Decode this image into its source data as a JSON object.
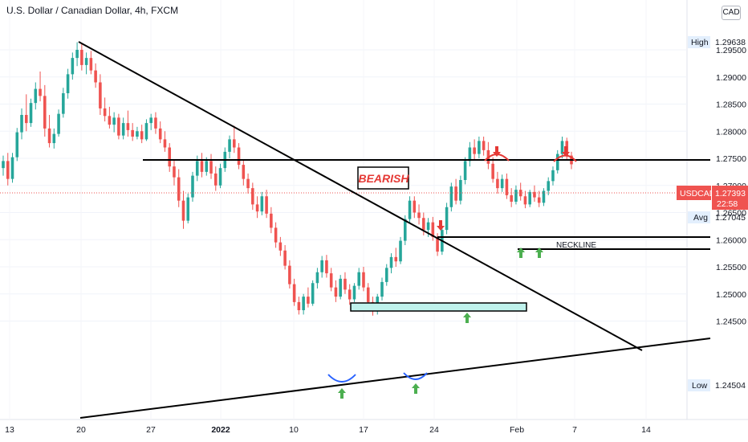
{
  "header": {
    "title": "U.S. Dollar / Canadian Dollar, 4h, FXCM",
    "currency_button": "CAD"
  },
  "chart_data": {
    "type": "candlestick",
    "symbol": "USDCAD",
    "interval": "4h",
    "source": "FXCM",
    "y_ticks": [
      "1.29500",
      "1.29000",
      "1.28500",
      "1.28000",
      "1.27500",
      "1.27000",
      "1.26500",
      "1.26000",
      "1.25500",
      "1.25000",
      "1.24500"
    ],
    "y_tick_values": [
      1.295,
      1.29,
      1.285,
      1.28,
      1.275,
      1.27,
      1.265,
      1.26,
      1.255,
      1.25,
      1.245
    ],
    "x_ticks": [
      "13",
      "20",
      "27",
      "2022",
      "10",
      "17",
      "24",
      "Feb",
      "7",
      "14"
    ],
    "ylim": [
      1.2405,
      1.2995
    ],
    "markers": {
      "high": {
        "label": "High",
        "value": "1.29638",
        "price": 1.29638
      },
      "price": {
        "label": "USDCAD",
        "value": "1.27393",
        "countdown": "22:58",
        "price": 1.27393
      },
      "avg": {
        "label": "Avg",
        "value": "1.27045",
        "price": 1.27045
      },
      "low": {
        "label": "Low",
        "value": "1.24504",
        "price": 1.24504
      }
    },
    "annotations": {
      "bearish": "BEARISH",
      "neckline": "NECKLINE"
    },
    "colors": {
      "up": "#26a69a",
      "down": "#ef5350",
      "price_tag": "#ef5350",
      "marker_bg": "#e3effd",
      "zone_fill": "#bff2ec",
      "up_arrow": "#4caf50",
      "down_arrow": "#e53935",
      "smile": "#2962ff"
    },
    "candles": [
      [
        1.2732,
        1.2755,
        1.2718,
        1.2745
      ],
      [
        1.2745,
        1.276,
        1.27,
        1.2712
      ],
      [
        1.2712,
        1.276,
        1.2705,
        1.2752
      ],
      [
        1.2752,
        1.2806,
        1.2745,
        1.2798
      ],
      [
        1.2798,
        1.2842,
        1.2785,
        1.283
      ],
      [
        1.283,
        1.2868,
        1.28,
        1.2815
      ],
      [
        1.2815,
        1.286,
        1.2808,
        1.2852
      ],
      [
        1.2852,
        1.289,
        1.284,
        1.2878
      ],
      [
        1.2878,
        1.291,
        1.2855,
        1.2865
      ],
      [
        1.2865,
        1.2885,
        1.279,
        1.2805
      ],
      [
        1.2805,
        1.283,
        1.277,
        1.2778
      ],
      [
        1.2778,
        1.2805,
        1.2768,
        1.2795
      ],
      [
        1.2795,
        1.284,
        1.279,
        1.2832
      ],
      [
        1.2832,
        1.288,
        1.2825,
        1.287
      ],
      [
        1.287,
        1.2915,
        1.286,
        1.2905
      ],
      [
        1.2905,
        1.2945,
        1.2895,
        1.2935
      ],
      [
        1.2935,
        1.2964,
        1.292,
        1.295
      ],
      [
        1.295,
        1.2962,
        1.2912,
        1.2922
      ],
      [
        1.2922,
        1.2945,
        1.2905,
        1.2935
      ],
      [
        1.2935,
        1.2948,
        1.2905,
        1.2912
      ],
      [
        1.2912,
        1.2925,
        1.288,
        1.289
      ],
      [
        1.289,
        1.2905,
        1.283,
        1.2842
      ],
      [
        1.2842,
        1.2862,
        1.2818,
        1.2828
      ],
      [
        1.2828,
        1.2845,
        1.2805,
        1.2812
      ],
      [
        1.2812,
        1.2835,
        1.2798,
        1.2825
      ],
      [
        1.2825,
        1.2832,
        1.2785,
        1.2792
      ],
      [
        1.2792,
        1.2825,
        1.2785,
        1.2815
      ],
      [
        1.2815,
        1.2838,
        1.279,
        1.2802
      ],
      [
        1.2802,
        1.2815,
        1.2782,
        1.279
      ],
      [
        1.279,
        1.2808,
        1.2785,
        1.28
      ],
      [
        1.28,
        1.2812,
        1.2778,
        1.2785
      ],
      [
        1.2785,
        1.2822,
        1.2782,
        1.2815
      ],
      [
        1.2815,
        1.2832,
        1.2802,
        1.2825
      ],
      [
        1.2825,
        1.2835,
        1.2795,
        1.2805
      ],
      [
        1.2805,
        1.2818,
        1.2778,
        1.2785
      ],
      [
        1.2785,
        1.28,
        1.2762,
        1.277
      ],
      [
        1.277,
        1.2778,
        1.2725,
        1.2735
      ],
      [
        1.2735,
        1.2748,
        1.27,
        1.2715
      ],
      [
        1.2715,
        1.273,
        1.266,
        1.2672
      ],
      [
        1.2672,
        1.269,
        1.262,
        1.2635
      ],
      [
        1.2635,
        1.2685,
        1.263,
        1.2678
      ],
      [
        1.2678,
        1.2725,
        1.267,
        1.2718
      ],
      [
        1.2718,
        1.2755,
        1.2708,
        1.2745
      ],
      [
        1.2745,
        1.276,
        1.2715,
        1.2725
      ],
      [
        1.2725,
        1.2752,
        1.2718,
        1.2745
      ],
      [
        1.2745,
        1.2758,
        1.2712,
        1.2722
      ],
      [
        1.2722,
        1.2735,
        1.269,
        1.27
      ],
      [
        1.27,
        1.274,
        1.2695,
        1.2732
      ],
      [
        1.2732,
        1.277,
        1.2725,
        1.2762
      ],
      [
        1.2762,
        1.2792,
        1.275,
        1.2785
      ],
      [
        1.2785,
        1.281,
        1.276,
        1.277
      ],
      [
        1.277,
        1.2778,
        1.273,
        1.2738
      ],
      [
        1.2738,
        1.2748,
        1.27,
        1.2712
      ],
      [
        1.2712,
        1.2722,
        1.2685,
        1.2695
      ],
      [
        1.2695,
        1.2705,
        1.2655,
        1.2665
      ],
      [
        1.2665,
        1.268,
        1.264,
        1.2652
      ],
      [
        1.2652,
        1.2688,
        1.2645,
        1.268
      ],
      [
        1.268,
        1.2692,
        1.264,
        1.2648
      ],
      [
        1.2648,
        1.266,
        1.2612,
        1.2622
      ],
      [
        1.2622,
        1.2632,
        1.2585,
        1.2595
      ],
      [
        1.2595,
        1.2605,
        1.257,
        1.258
      ],
      [
        1.258,
        1.259,
        1.2545,
        1.2552
      ],
      [
        1.2552,
        1.2562,
        1.251,
        1.2518
      ],
      [
        1.2518,
        1.2528,
        1.2478,
        1.2485
      ],
      [
        1.2485,
        1.2495,
        1.2462,
        1.247
      ],
      [
        1.247,
        1.25,
        1.2462,
        1.2495
      ],
      [
        1.2495,
        1.2512,
        1.2475,
        1.2482
      ],
      [
        1.2482,
        1.2525,
        1.2478,
        1.252
      ],
      [
        1.252,
        1.2548,
        1.251,
        1.254
      ],
      [
        1.254,
        1.257,
        1.253,
        1.2562
      ],
      [
        1.2562,
        1.2572,
        1.253,
        1.2538
      ],
      [
        1.2538,
        1.2548,
        1.2505,
        1.2512
      ],
      [
        1.2512,
        1.2525,
        1.2485,
        1.2495
      ],
      [
        1.2495,
        1.2535,
        1.249,
        1.2528
      ],
      [
        1.2528,
        1.254,
        1.25,
        1.2508
      ],
      [
        1.2508,
        1.2518,
        1.248,
        1.249
      ],
      [
        1.249,
        1.252,
        1.2485,
        1.2515
      ],
      [
        1.2515,
        1.2548,
        1.2508,
        1.254
      ],
      [
        1.254,
        1.255,
        1.2505,
        1.2512
      ],
      [
        1.2512,
        1.252,
        1.2478,
        1.2485
      ],
      [
        1.2485,
        1.2495,
        1.246,
        1.2468
      ],
      [
        1.2468,
        1.25,
        1.2462,
        1.2495
      ],
      [
        1.2495,
        1.253,
        1.2488,
        1.2522
      ],
      [
        1.2522,
        1.2555,
        1.2515,
        1.2548
      ],
      [
        1.2548,
        1.2575,
        1.2538,
        1.2568
      ],
      [
        1.2568,
        1.2585,
        1.255,
        1.256
      ],
      [
        1.256,
        1.2605,
        1.2555,
        1.2598
      ],
      [
        1.2598,
        1.2645,
        1.259,
        1.2638
      ],
      [
        1.2638,
        1.268,
        1.263,
        1.2672
      ],
      [
        1.2672,
        1.268,
        1.264,
        1.265
      ],
      [
        1.265,
        1.2665,
        1.2628,
        1.264
      ],
      [
        1.264,
        1.265,
        1.2608,
        1.2618
      ],
      [
        1.2618,
        1.264,
        1.2605,
        1.2632
      ],
      [
        1.2632,
        1.2642,
        1.2598,
        1.2605
      ],
      [
        1.2605,
        1.2612,
        1.257,
        1.2578
      ],
      [
        1.2578,
        1.2625,
        1.2572,
        1.2618
      ],
      [
        1.2618,
        1.2668,
        1.261,
        1.266
      ],
      [
        1.266,
        1.2705,
        1.2652,
        1.2698
      ],
      [
        1.2698,
        1.2712,
        1.2665,
        1.2672
      ],
      [
        1.2672,
        1.2718,
        1.2665,
        1.271
      ],
      [
        1.271,
        1.2752,
        1.2702,
        1.2745
      ],
      [
        1.2745,
        1.278,
        1.2735,
        1.277
      ],
      [
        1.277,
        1.2785,
        1.2748,
        1.2758
      ],
      [
        1.2758,
        1.279,
        1.275,
        1.2782
      ],
      [
        1.2782,
        1.279,
        1.2755,
        1.2765
      ],
      [
        1.2765,
        1.278,
        1.273,
        1.274
      ],
      [
        1.274,
        1.2752,
        1.2705,
        1.2712
      ],
      [
        1.2712,
        1.2725,
        1.2685,
        1.2695
      ],
      [
        1.2695,
        1.272,
        1.2688,
        1.2712
      ],
      [
        1.2712,
        1.2722,
        1.2675,
        1.2682
      ],
      [
        1.2682,
        1.2695,
        1.266,
        1.267
      ],
      [
        1.267,
        1.27,
        1.2665,
        1.2692
      ],
      [
        1.2692,
        1.2705,
        1.2672,
        1.268
      ],
      [
        1.268,
        1.269,
        1.2658,
        1.2665
      ],
      [
        1.2665,
        1.2692,
        1.266,
        1.2688
      ],
      [
        1.2688,
        1.27,
        1.267,
        1.2678
      ],
      [
        1.2678,
        1.269,
        1.266,
        1.2668
      ],
      [
        1.2668,
        1.2695,
        1.2662,
        1.269
      ],
      [
        1.269,
        1.2715,
        1.2682,
        1.2708
      ],
      [
        1.2708,
        1.2735,
        1.27,
        1.2728
      ],
      [
        1.2728,
        1.2765,
        1.2722,
        1.2758
      ],
      [
        1.2758,
        1.279,
        1.275,
        1.2782
      ],
      [
        1.2782,
        1.2788,
        1.2748,
        1.2755
      ],
      [
        1.2755,
        1.2762,
        1.273,
        1.2739
      ]
    ]
  }
}
